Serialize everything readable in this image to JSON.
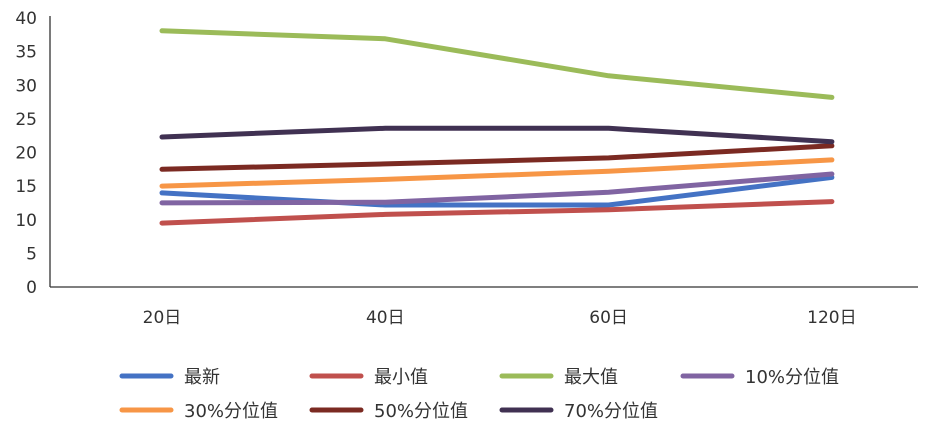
{
  "chart_data": {
    "type": "line",
    "title": "",
    "xlabel": "",
    "ylabel": "",
    "categories": [
      "20日",
      "40日",
      "60日",
      "120日"
    ],
    "ylim": [
      0,
      40
    ],
    "yticks": [
      0,
      5,
      10,
      15,
      20,
      25,
      30,
      35,
      40
    ],
    "grid": false,
    "legend_position": "bottom",
    "series": [
      {
        "name": "最新",
        "color": "#4472C4",
        "values": [
          14.0,
          12.2,
          12.2,
          16.3
        ]
      },
      {
        "name": "最小值",
        "color": "#C0504D",
        "values": [
          9.5,
          10.8,
          11.5,
          12.7
        ]
      },
      {
        "name": "最大值",
        "color": "#9BBB59",
        "values": [
          38.1,
          36.9,
          31.4,
          28.2
        ]
      },
      {
        "name": "10%分位值",
        "color": "#8064A2",
        "values": [
          12.5,
          12.6,
          14.1,
          16.8
        ]
      },
      {
        "name": "30%分位值",
        "color": "#F79646",
        "values": [
          15.0,
          16.0,
          17.2,
          18.9
        ]
      },
      {
        "name": "50%分位值",
        "color": "#7B2A22",
        "values": [
          17.5,
          18.3,
          19.2,
          21.0
        ]
      },
      {
        "name": "70%分位值",
        "color": "#403152",
        "values": [
          22.3,
          23.6,
          23.6,
          21.6
        ]
      }
    ]
  }
}
